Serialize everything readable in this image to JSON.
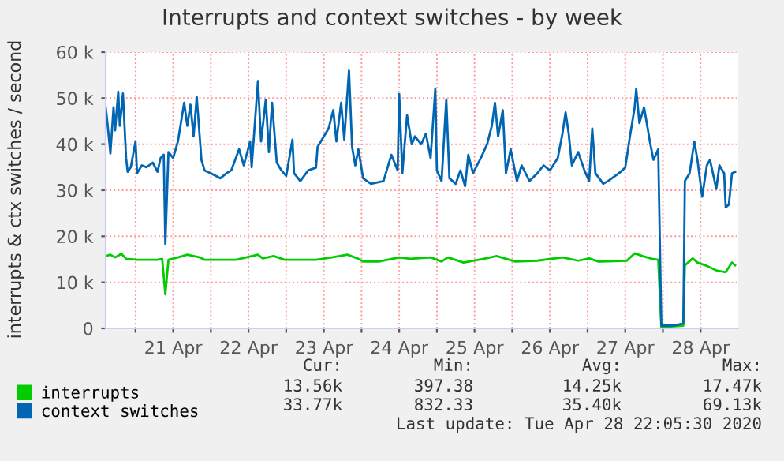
{
  "chart_data": {
    "type": "line",
    "title": "Interrupts and context switches - by week",
    "ylabel": "interrupts & ctx switches / second",
    "xlim": [
      "2020-04-20T14:30",
      "2020-04-29T00:00"
    ],
    "xticks": [
      {
        "value": "2020-04-21T00:00",
        "label": null
      },
      {
        "value": "2020-04-21T12:00",
        "label": "21 Apr"
      },
      {
        "value": "2020-04-22T00:00",
        "label": null
      },
      {
        "value": "2020-04-22T12:00",
        "label": "22 Apr"
      },
      {
        "value": "2020-04-23T00:00",
        "label": null
      },
      {
        "value": "2020-04-23T12:00",
        "label": "23 Apr"
      },
      {
        "value": "2020-04-24T00:00",
        "label": null
      },
      {
        "value": "2020-04-24T12:00",
        "label": "24 Apr"
      },
      {
        "value": "2020-04-25T00:00",
        "label": null
      },
      {
        "value": "2020-04-25T12:00",
        "label": "25 Apr"
      },
      {
        "value": "2020-04-26T00:00",
        "label": null
      },
      {
        "value": "2020-04-26T12:00",
        "label": "26 Apr"
      },
      {
        "value": "2020-04-27T00:00",
        "label": null
      },
      {
        "value": "2020-04-27T12:00",
        "label": "27 Apr"
      },
      {
        "value": "2020-04-28T00:00",
        "label": null
      },
      {
        "value": "2020-04-28T12:00",
        "label": "28 Apr"
      }
    ],
    "ylim": [
      0,
      60000
    ],
    "yticks": [
      0,
      {
        "value": 10000,
        "label": "10 k"
      },
      {
        "value": 20000,
        "label": "20 k"
      },
      {
        "value": 30000,
        "label": "30 k"
      },
      {
        "value": 40000,
        "label": "40 k"
      },
      {
        "value": 50000,
        "label": "50 k"
      },
      {
        "value": 60000,
        "label": "60 k"
      }
    ],
    "grid": true,
    "legend": "bottom left",
    "line_style": "solid",
    "marker": "none",
    "series": [
      {
        "name": "interrupts",
        "color": "#00cc00",
        "x": [
          "2020-04-20T14:30",
          "2020-04-20T16:00",
          "2020-04-20T17:30",
          "2020-04-20T19:30",
          "2020-04-20T21:00",
          "2020-04-21T00:30",
          "2020-04-21T07:00",
          "2020-04-21T08:30",
          "2020-04-21T09:30",
          "2020-04-21T10:30",
          "2020-04-21T13:30",
          "2020-04-21T16:30",
          "2020-04-21T20:30",
          "2020-04-21T22:00",
          "2020-04-22T08:00",
          "2020-04-22T15:00",
          "2020-04-22T16:30",
          "2020-04-22T20:00",
          "2020-04-22T23:30",
          "2020-04-23T09:30",
          "2020-04-23T14:30",
          "2020-04-23T19:30",
          "2020-04-23T23:00",
          "2020-04-24T00:30",
          "2020-04-24T05:30",
          "2020-04-24T12:00",
          "2020-04-24T15:30",
          "2020-04-24T22:00",
          "2020-04-25T01:30",
          "2020-04-25T03:30",
          "2020-04-25T08:30",
          "2020-04-25T15:00",
          "2020-04-25T19:00",
          "2020-04-26T01:00",
          "2020-04-26T08:00",
          "2020-04-26T16:00",
          "2020-04-26T21:00",
          "2020-04-27T00:30",
          "2020-04-27T03:30",
          "2020-04-27T12:30",
          "2020-04-27T15:00",
          "2020-04-27T17:30",
          "2020-04-27T20:30",
          "2020-04-27T22:30",
          "2020-04-27T23:30",
          "2020-04-28T06:30",
          "2020-04-28T07:00",
          "2020-04-28T09:30",
          "2020-04-28T11:00",
          "2020-04-28T13:30",
          "2020-04-28T17:00",
          "2020-04-28T20:00",
          "2020-04-28T22:00",
          "2020-04-28T23:00"
        ],
        "values": [
          15700,
          16000,
          15400,
          16200,
          15100,
          14900,
          14900,
          15100,
          7400,
          14900,
          15400,
          16000,
          15400,
          14900,
          14900,
          16000,
          15200,
          15700,
          14900,
          14900,
          15400,
          16000,
          15100,
          14500,
          14500,
          15400,
          15100,
          15400,
          14500,
          15400,
          14300,
          15100,
          15700,
          14500,
          14700,
          15400,
          14700,
          15200,
          14500,
          14700,
          16300,
          15700,
          15100,
          14900,
          300,
          600,
          13700,
          15200,
          14300,
          13700,
          12600,
          12200,
          14300,
          13700
        ]
      },
      {
        "name": "context switches",
        "color": "#0066b3",
        "x": [
          "2020-04-20T14:30",
          "2020-04-20T15:00",
          "2020-04-20T16:00",
          "2020-04-20T17:00",
          "2020-04-20T17:30",
          "2020-04-20T18:30",
          "2020-04-20T19:00",
          "2020-04-20T19:30",
          "2020-04-20T20:00",
          "2020-04-20T21:00",
          "2020-04-20T21:30",
          "2020-04-20T22:30",
          "2020-04-21T00:00",
          "2020-04-21T00:30",
          "2020-04-21T02:00",
          "2020-04-21T03:30",
          "2020-04-21T05:30",
          "2020-04-21T07:00",
          "2020-04-21T08:00",
          "2020-04-21T09:00",
          "2020-04-21T09:30",
          "2020-04-21T10:30",
          "2020-04-21T12:00",
          "2020-04-21T13:30",
          "2020-04-21T15:30",
          "2020-04-21T16:30",
          "2020-04-21T17:30",
          "2020-04-21T18:30",
          "2020-04-21T19:30",
          "2020-04-21T21:00",
          "2020-04-21T22:00",
          "2020-04-22T00:00",
          "2020-04-22T03:00",
          "2020-04-22T05:00",
          "2020-04-22T06:30",
          "2020-04-22T09:00",
          "2020-04-22T10:30",
          "2020-04-22T12:30",
          "2020-04-22T13:00",
          "2020-04-22T15:00",
          "2020-04-22T16:00",
          "2020-04-22T17:30",
          "2020-04-22T18:30",
          "2020-04-22T19:30",
          "2020-04-22T21:00",
          "2020-04-22T22:30",
          "2020-04-23T00:00",
          "2020-04-23T02:00",
          "2020-04-23T02:30",
          "2020-04-23T04:30",
          "2020-04-23T07:00",
          "2020-04-23T09:30",
          "2020-04-23T10:00",
          "2020-04-23T12:00",
          "2020-04-23T13:30",
          "2020-04-23T15:00",
          "2020-04-23T16:00",
          "2020-04-23T17:30",
          "2020-04-23T18:30",
          "2020-04-23T20:00",
          "2020-04-23T21:00",
          "2020-04-23T22:00",
          "2020-04-23T23:00",
          "2020-04-24T00:30",
          "2020-04-24T03:00",
          "2020-04-24T07:00",
          "2020-04-24T09:30",
          "2020-04-24T11:30",
          "2020-04-24T12:00",
          "2020-04-24T13:00",
          "2020-04-24T14:30",
          "2020-04-24T16:00",
          "2020-04-24T17:00",
          "2020-04-24T19:00",
          "2020-04-24T20:30",
          "2020-04-24T22:00",
          "2020-04-24T23:30",
          "2020-04-25T00:00",
          "2020-04-25T01:30",
          "2020-04-25T03:00",
          "2020-04-25T04:00",
          "2020-04-25T06:00",
          "2020-04-25T07:30",
          "2020-04-25T09:00",
          "2020-04-25T10:00",
          "2020-04-25T11:30",
          "2020-04-25T14:00",
          "2020-04-25T16:00",
          "2020-04-25T17:30",
          "2020-04-25T18:30",
          "2020-04-25T19:30",
          "2020-04-25T21:00",
          "2020-04-25T22:00",
          "2020-04-25T23:30",
          "2020-04-26T01:30",
          "2020-04-26T03:00",
          "2020-04-26T05:30",
          "2020-04-26T08:00",
          "2020-04-26T10:00",
          "2020-04-26T12:00",
          "2020-04-26T14:30",
          "2020-04-26T16:00",
          "2020-04-26T17:00",
          "2020-04-26T18:00",
          "2020-04-26T19:00",
          "2020-04-26T21:00",
          "2020-04-26T23:00",
          "2020-04-27T00:30",
          "2020-04-27T01:30",
          "2020-04-27T02:30",
          "2020-04-27T05:00",
          "2020-04-27T06:30",
          "2020-04-27T10:00",
          "2020-04-27T12:00",
          "2020-04-27T13:30",
          "2020-04-27T15:00",
          "2020-04-27T15:30",
          "2020-04-27T16:30",
          "2020-04-27T18:00",
          "2020-04-27T20:00",
          "2020-04-27T21:00",
          "2020-04-27T22:30",
          "2020-04-27T23:30",
          "2020-04-28T03:30",
          "2020-04-28T06:30",
          "2020-04-28T07:00",
          "2020-04-28T08:30",
          "2020-04-28T10:00",
          "2020-04-28T11:00",
          "2020-04-28T12:30",
          "2020-04-28T14:00",
          "2020-04-28T15:00",
          "2020-04-28T17:00",
          "2020-04-28T18:00",
          "2020-04-28T19:30",
          "2020-04-28T20:00",
          "2020-04-28T21:00",
          "2020-04-28T22:00",
          "2020-04-28T23:00"
        ],
        "values": [
          48000,
          45000,
          38000,
          48000,
          43000,
          51400,
          44000,
          47400,
          51000,
          37000,
          34000,
          35000,
          40600,
          33700,
          35400,
          35000,
          36000,
          34000,
          37000,
          37700,
          18300,
          38300,
          37000,
          40600,
          49000,
          44000,
          48600,
          41700,
          50300,
          36600,
          34300,
          33700,
          32600,
          33700,
          34300,
          38900,
          35400,
          40600,
          35000,
          53700,
          40600,
          49700,
          38300,
          49000,
          36000,
          34300,
          33100,
          41000,
          33700,
          32000,
          34300,
          34900,
          39400,
          41700,
          43400,
          47400,
          40600,
          49000,
          41000,
          56000,
          39400,
          35400,
          38900,
          32600,
          31400,
          32000,
          37700,
          34300,
          50900,
          33700,
          46300,
          40000,
          41700,
          40000,
          42300,
          37000,
          52000,
          34300,
          32000,
          49700,
          32600,
          31400,
          34300,
          30900,
          37700,
          33700,
          37000,
          40000,
          44000,
          49000,
          41700,
          47400,
          33700,
          38900,
          32000,
          35400,
          32000,
          33700,
          35400,
          34300,
          37000,
          42300,
          46900,
          42300,
          35400,
          38300,
          34300,
          32000,
          43400,
          33700,
          31400,
          32000,
          33700,
          34900,
          41700,
          48000,
          52000,
          44600,
          48000,
          40000,
          36600,
          38900,
          600,
          600,
          1100,
          32000,
          33700,
          40600,
          36600,
          28600,
          35400,
          36600,
          30300,
          35400,
          33700,
          26300,
          26900,
          33700,
          34000
        ]
      }
    ],
    "annotations": [
      "Cur:",
      "Min:",
      "Avg:",
      "Max:",
      "13.56k",
      "397.38",
      "14.25k",
      "17.47k",
      "33.77k",
      "832.33",
      "35.40k",
      "69.13k",
      "Last update: Tue Apr 28 22:05:30 2020"
    ]
  }
}
